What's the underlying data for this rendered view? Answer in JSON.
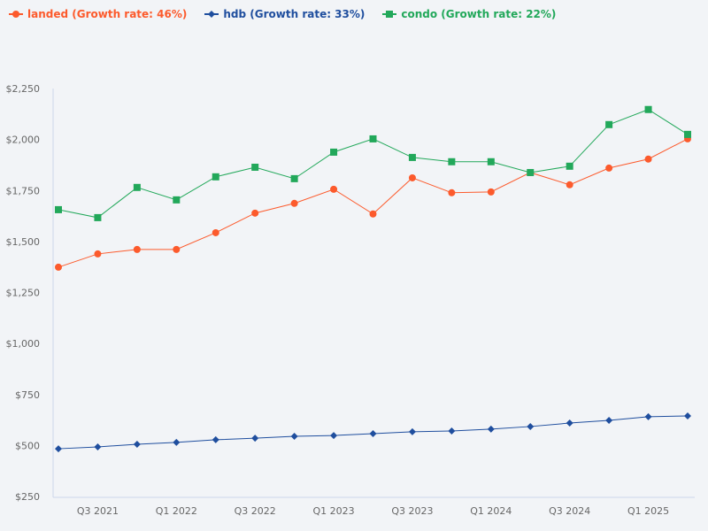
{
  "chart_data": {
    "type": "line",
    "categories": [
      "",
      "Q3 2021",
      "",
      "Q1 2022",
      "",
      "Q3 2022",
      "",
      "Q1 2023",
      "",
      "Q3 2023",
      "",
      "Q1 2024",
      "",
      "Q3 2024",
      "",
      "Q1 2025",
      ""
    ],
    "series": [
      {
        "name": "landed (Growth rate: 46%)",
        "color": "#fc5a2c",
        "marker": "circle",
        "values": [
          1374,
          1439,
          1461,
          1461,
          1543,
          1639,
          1687,
          1756,
          1635,
          1812,
          1739,
          1743,
          1838,
          1778,
          1860,
          1904,
          2003
        ]
      },
      {
        "name": "hdb (Growth rate: 33%)",
        "color": "#1f4e9e",
        "marker": "diamond",
        "values": [
          484,
          493,
          506,
          515,
          528,
          536,
          545,
          549,
          558,
          567,
          571,
          580,
          593,
          610,
          623,
          641,
          645
        ]
      },
      {
        "name": "condo (Growth rate: 22%)",
        "color": "#22a85a",
        "marker": "square",
        "values": [
          1656,
          1617,
          1765,
          1704,
          1817,
          1864,
          1808,
          1938,
          2003,
          1912,
          1891,
          1891,
          1838,
          1869,
          2073,
          2147,
          2025
        ]
      }
    ],
    "y_ticks": [
      "$250",
      "$500",
      "$750",
      "$1,000",
      "$1,250",
      "$1,500",
      "$1,750",
      "$2,000",
      "$2,250"
    ],
    "ylim": [
      250,
      2250
    ],
    "grid": false,
    "legend_position": "top-left"
  }
}
